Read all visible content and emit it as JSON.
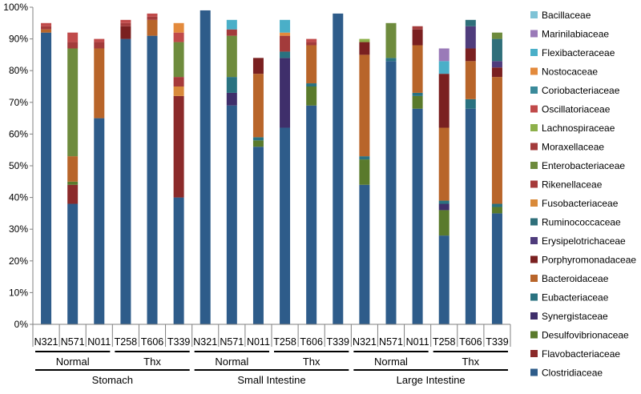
{
  "chart_data": {
    "type": "bar",
    "stacked": true,
    "ylim": [
      0,
      100
    ],
    "yticks": [
      "0%",
      "10%",
      "20%",
      "30%",
      "40%",
      "50%",
      "60%",
      "70%",
      "80%",
      "90%",
      "100%"
    ],
    "grid": false,
    "legend_position": "right",
    "categories": [
      "N321",
      "N571",
      "N011",
      "T258",
      "T606",
      "T339",
      "N321",
      "N571",
      "N011",
      "T258",
      "T606",
      "T339",
      "N321",
      "N571",
      "N011",
      "T258",
      "T606",
      "T339"
    ],
    "subgroups": [
      {
        "label": "Normal",
        "start": 0,
        "end": 2
      },
      {
        "label": "Thx",
        "start": 3,
        "end": 5
      },
      {
        "label": "Normal",
        "start": 6,
        "end": 8
      },
      {
        "label": "Thx",
        "start": 9,
        "end": 11
      },
      {
        "label": "Normal",
        "start": 12,
        "end": 14
      },
      {
        "label": "Thx",
        "start": 15,
        "end": 17
      }
    ],
    "groups": [
      {
        "label": "Stomach",
        "start": 0,
        "end": 5
      },
      {
        "label": "Small Intestine",
        "start": 6,
        "end": 11
      },
      {
        "label": "Large Intestine",
        "start": 12,
        "end": 17
      }
    ],
    "series": [
      {
        "name": "Clostridiaceae",
        "color": "#2E5C8A",
        "values": [
          92,
          38,
          65,
          90,
          91,
          40,
          99,
          69,
          56,
          62,
          69,
          98,
          44,
          83,
          68,
          28,
          68,
          35
        ]
      },
      {
        "name": "Flavobacteriaceae",
        "color": "#8B2A2A",
        "values": [
          0,
          6,
          0,
          0,
          0,
          32,
          0,
          0,
          0,
          0,
          0,
          0,
          0,
          0,
          0,
          0,
          0,
          0
        ]
      },
      {
        "name": "Desulfovibrionaceae",
        "color": "#5A7A2C",
        "values": [
          0,
          1,
          0,
          0,
          0,
          0,
          0,
          0,
          2,
          0,
          6,
          0,
          8,
          0,
          4,
          8,
          0,
          2
        ]
      },
      {
        "name": "Synergistaceae",
        "color": "#3F2F6B",
        "values": [
          0,
          0,
          0,
          0,
          0,
          0,
          0,
          4,
          0,
          22,
          0,
          0,
          0,
          0,
          0,
          2,
          0,
          0
        ]
      },
      {
        "name": "Eubacteriaceae",
        "color": "#2A7280",
        "values": [
          0,
          0,
          0,
          0,
          0,
          0,
          0,
          5,
          1,
          2,
          1,
          0,
          1,
          1,
          1,
          1,
          3,
          1
        ]
      },
      {
        "name": "Bacteroidaceae",
        "color": "#B8652A",
        "values": [
          1,
          8,
          22,
          0,
          5,
          0,
          0,
          0,
          20,
          0,
          12,
          0,
          32,
          0,
          15,
          23,
          12,
          40
        ]
      },
      {
        "name": "Porphyromonadaceae",
        "color": "#7A2020",
        "values": [
          0,
          0,
          0,
          4,
          0,
          0,
          0,
          0,
          5,
          0,
          0,
          0,
          4,
          0,
          5,
          17,
          4,
          3
        ]
      },
      {
        "name": "Erysipelotrichaceae",
        "color": "#4F3C7C",
        "values": [
          0,
          0,
          0,
          0,
          0,
          0,
          0,
          0,
          0,
          0,
          0,
          0,
          0,
          0,
          0,
          0,
          7,
          2
        ]
      },
      {
        "name": "Ruminococcaceae",
        "color": "#2F6F7A",
        "values": [
          0,
          0,
          0,
          0,
          0,
          0,
          0,
          0,
          0,
          0,
          0,
          0,
          0,
          0,
          0,
          0,
          2,
          7
        ]
      },
      {
        "name": "Fusobacteriaceae",
        "color": "#D98A3A",
        "values": [
          0,
          0,
          0,
          0,
          0,
          3,
          0,
          0,
          0,
          0,
          0,
          0,
          0,
          0,
          0,
          0,
          0,
          0
        ]
      },
      {
        "name": "Rikenellaceae",
        "color": "#A63A3A",
        "values": [
          0,
          0,
          0,
          0,
          0,
          3,
          0,
          0,
          0,
          0,
          0,
          0,
          0,
          0,
          0,
          0,
          0,
          0
        ]
      },
      {
        "name": "Enterobacteriaceae",
        "color": "#6E8B3D",
        "values": [
          0,
          34,
          0,
          0,
          0,
          11,
          0,
          13,
          0,
          0,
          0,
          0,
          0,
          11,
          0,
          0,
          0,
          2
        ]
      },
      {
        "name": "Moraxellaceae",
        "color": "#A33B3B",
        "values": [
          1,
          2,
          2,
          1,
          1,
          0,
          0,
          2,
          0,
          5,
          1,
          0,
          0,
          0,
          1,
          0,
          0,
          0
        ]
      },
      {
        "name": "Lachnospiraceae",
        "color": "#8DB04A",
        "values": [
          0,
          0,
          0,
          0,
          0,
          0,
          0,
          0,
          0,
          0,
          0,
          0,
          1,
          0,
          0,
          0,
          0,
          0
        ]
      },
      {
        "name": "Oscillatoriaceae",
        "color": "#C04A4A",
        "values": [
          1,
          3,
          1,
          1,
          1,
          3,
          0,
          0,
          0,
          0,
          1,
          0,
          0,
          0,
          0,
          0,
          0,
          0
        ]
      },
      {
        "name": "Coriobacteriaceae",
        "color": "#3A8A9A",
        "values": [
          0,
          0,
          0,
          0,
          0,
          0,
          0,
          0,
          0,
          0,
          0,
          0,
          0,
          0,
          0,
          0,
          0,
          0
        ]
      },
      {
        "name": "Nostocaceae",
        "color": "#E38A3C",
        "values": [
          0,
          0,
          0,
          0,
          0,
          3,
          0,
          0,
          0,
          1,
          0,
          0,
          0,
          0,
          0,
          0,
          0,
          0
        ]
      },
      {
        "name": "Flexibacteraceae",
        "color": "#4AAFC8",
        "values": [
          0,
          0,
          0,
          0,
          0,
          0,
          0,
          3,
          0,
          4,
          0,
          0,
          0,
          0,
          0,
          4,
          0,
          0
        ]
      },
      {
        "name": "Marinilabiaceae",
        "color": "#9A7AB8",
        "values": [
          0,
          0,
          0,
          0,
          0,
          0,
          0,
          0,
          0,
          0,
          0,
          0,
          0,
          0,
          0,
          4,
          0,
          0
        ]
      },
      {
        "name": "Bacillaceae",
        "color": "#7FC3D6",
        "values": [
          0,
          0,
          0,
          0,
          0,
          0,
          0,
          0,
          0,
          0,
          0,
          0,
          0,
          0,
          0,
          0,
          0,
          0
        ]
      }
    ],
    "legend_order": [
      "Bacillaceae",
      "Marinilabiaceae",
      "Flexibacteraceae",
      "Nostocaceae",
      "Coriobacteriaceae",
      "Oscillatoriaceae",
      "Lachnospiraceae",
      "Moraxellaceae",
      "Enterobacteriaceae",
      "Rikenellaceae",
      "Fusobacteriaceae",
      "Ruminococcaceae",
      "Erysipelotrichaceae",
      "Porphyromonadaceae",
      "Bacteroidaceae",
      "Eubacteriaceae",
      "Synergistaceae",
      "Desulfovibrionaceae",
      "Flavobacteriaceae",
      "Clostridiaceae"
    ]
  }
}
